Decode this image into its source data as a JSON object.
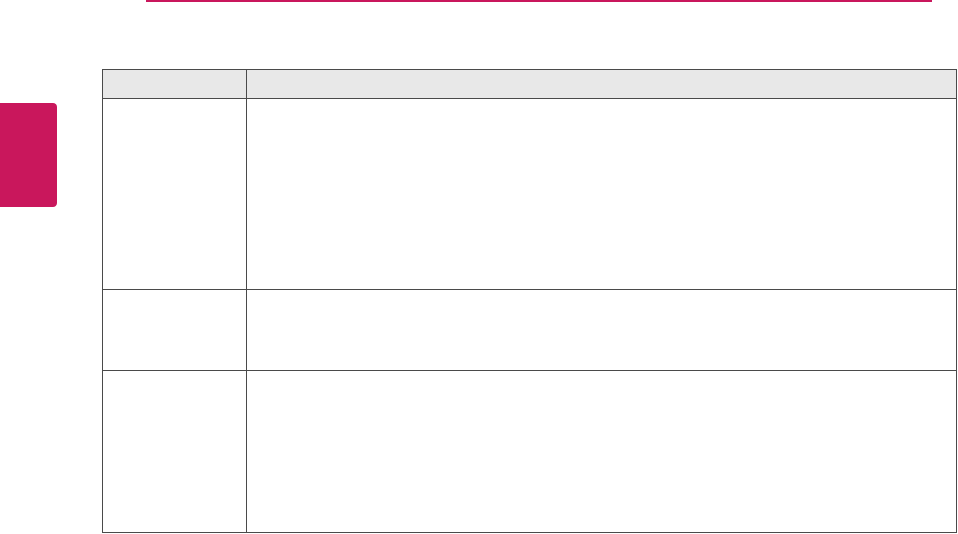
{
  "colors": {
    "accent": "#c9175c",
    "header_bg": "#e8e8e8",
    "border": "#4a4a4a"
  },
  "table": {
    "headers": [
      "",
      ""
    ],
    "rows": [
      [
        "",
        ""
      ],
      [
        "",
        ""
      ],
      [
        "",
        ""
      ]
    ]
  }
}
